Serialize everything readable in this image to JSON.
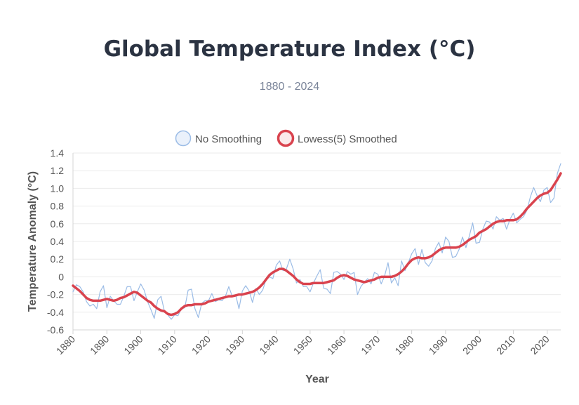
{
  "title": "Global Temperature Index (°C)",
  "subtitle": "1880 - 2024",
  "colors": {
    "raw": "#9bbce6",
    "smooth": "#d9434e",
    "grid": "#ebebeb",
    "text": "#555555"
  },
  "chart_data": {
    "type": "line",
    "xlabel": "Year",
    "ylabel": "Temperature Anomaly (°C)",
    "xlim": [
      1880,
      2024
    ],
    "ylim": [
      -0.6,
      1.4
    ],
    "x_ticks": [
      1880,
      1890,
      1900,
      1910,
      1920,
      1930,
      1940,
      1950,
      1960,
      1970,
      1980,
      1990,
      2000,
      2010,
      2020
    ],
    "y_ticks": [
      1.4,
      1.2,
      1.0,
      0.8,
      0.6,
      0.4,
      0.2,
      0,
      -0.2,
      -0.4,
      -0.6
    ],
    "y_tick_labels": [
      "1.4",
      "1.2",
      "1.0",
      "0.8",
      "0.6",
      "0.4",
      "0.2",
      "0",
      "-0.2",
      "-0.4",
      "-0.6"
    ],
    "grid": true,
    "legend": "top-center",
    "series": [
      {
        "name": "No Smoothing",
        "color": "#9bbce6",
        "x": [
          1880,
          1881,
          1882,
          1883,
          1884,
          1885,
          1886,
          1887,
          1888,
          1889,
          1890,
          1891,
          1892,
          1893,
          1894,
          1895,
          1896,
          1897,
          1898,
          1899,
          1900,
          1901,
          1902,
          1903,
          1904,
          1905,
          1906,
          1907,
          1908,
          1909,
          1910,
          1911,
          1912,
          1913,
          1914,
          1915,
          1916,
          1917,
          1918,
          1919,
          1920,
          1921,
          1922,
          1923,
          1924,
          1925,
          1926,
          1927,
          1928,
          1929,
          1930,
          1931,
          1932,
          1933,
          1934,
          1935,
          1936,
          1937,
          1938,
          1939,
          1940,
          1941,
          1942,
          1943,
          1944,
          1945,
          1946,
          1947,
          1948,
          1949,
          1950,
          1951,
          1952,
          1953,
          1954,
          1955,
          1956,
          1957,
          1958,
          1959,
          1960,
          1961,
          1962,
          1963,
          1964,
          1965,
          1966,
          1967,
          1968,
          1969,
          1970,
          1971,
          1972,
          1973,
          1974,
          1975,
          1976,
          1977,
          1978,
          1979,
          1980,
          1981,
          1982,
          1983,
          1984,
          1985,
          1986,
          1987,
          1988,
          1989,
          1990,
          1991,
          1992,
          1993,
          1994,
          1995,
          1996,
          1997,
          1998,
          1999,
          2000,
          2001,
          2002,
          2003,
          2004,
          2005,
          2006,
          2007,
          2008,
          2009,
          2010,
          2011,
          2012,
          2013,
          2014,
          2015,
          2016,
          2017,
          2018,
          2019,
          2020,
          2021,
          2022,
          2023,
          2024
        ],
        "values": [
          -0.17,
          -0.09,
          -0.11,
          -0.17,
          -0.28,
          -0.33,
          -0.31,
          -0.36,
          -0.17,
          -0.1,
          -0.35,
          -0.22,
          -0.27,
          -0.31,
          -0.31,
          -0.22,
          -0.11,
          -0.11,
          -0.27,
          -0.17,
          -0.08,
          -0.15,
          -0.28,
          -0.37,
          -0.47,
          -0.26,
          -0.22,
          -0.39,
          -0.43,
          -0.48,
          -0.43,
          -0.44,
          -0.36,
          -0.35,
          -0.15,
          -0.14,
          -0.36,
          -0.46,
          -0.3,
          -0.27,
          -0.27,
          -0.19,
          -0.28,
          -0.26,
          -0.27,
          -0.22,
          -0.11,
          -0.22,
          -0.2,
          -0.36,
          -0.16,
          -0.1,
          -0.16,
          -0.29,
          -0.13,
          -0.2,
          -0.15,
          -0.03,
          0,
          -0.02,
          0.13,
          0.18,
          0.07,
          0.09,
          0.2,
          0.09,
          -0.07,
          -0.03,
          -0.11,
          -0.11,
          -0.17,
          -0.07,
          0.01,
          0.08,
          -0.13,
          -0.14,
          -0.19,
          0.05,
          0.06,
          0.03,
          -0.03,
          0.06,
          0.03,
          0.05,
          -0.2,
          -0.11,
          -0.06,
          -0.02,
          -0.08,
          0.05,
          0.03,
          -0.08,
          0.01,
          0.16,
          -0.07,
          -0.01,
          -0.1,
          0.18,
          0.07,
          0.16,
          0.26,
          0.32,
          0.14,
          0.31,
          0.16,
          0.12,
          0.18,
          0.32,
          0.39,
          0.27,
          0.45,
          0.4,
          0.22,
          0.23,
          0.31,
          0.45,
          0.33,
          0.46,
          0.61,
          0.38,
          0.39,
          0.54,
          0.63,
          0.62,
          0.54,
          0.68,
          0.64,
          0.66,
          0.54,
          0.65,
          0.72,
          0.61,
          0.65,
          0.68,
          0.75,
          0.9,
          1.01,
          0.92,
          0.85,
          0.98,
          1.01,
          0.84,
          0.89,
          1.17,
          1.28
        ]
      },
      {
        "name": "Lowess(5) Smoothed",
        "color": "#d9434e",
        "x": [
          1880,
          1881,
          1882,
          1883,
          1884,
          1885,
          1886,
          1887,
          1888,
          1889,
          1890,
          1891,
          1892,
          1893,
          1894,
          1895,
          1896,
          1897,
          1898,
          1899,
          1900,
          1901,
          1902,
          1903,
          1904,
          1905,
          1906,
          1907,
          1908,
          1909,
          1910,
          1911,
          1912,
          1913,
          1914,
          1915,
          1916,
          1917,
          1918,
          1919,
          1920,
          1921,
          1922,
          1923,
          1924,
          1925,
          1926,
          1927,
          1928,
          1929,
          1930,
          1931,
          1932,
          1933,
          1934,
          1935,
          1936,
          1937,
          1938,
          1939,
          1940,
          1941,
          1942,
          1943,
          1944,
          1945,
          1946,
          1947,
          1948,
          1949,
          1950,
          1951,
          1952,
          1953,
          1954,
          1955,
          1956,
          1957,
          1958,
          1959,
          1960,
          1961,
          1962,
          1963,
          1964,
          1965,
          1966,
          1967,
          1968,
          1969,
          1970,
          1971,
          1972,
          1973,
          1974,
          1975,
          1976,
          1977,
          1978,
          1979,
          1980,
          1981,
          1982,
          1983,
          1984,
          1985,
          1986,
          1987,
          1988,
          1989,
          1990,
          1991,
          1992,
          1993,
          1994,
          1995,
          1996,
          1997,
          1998,
          1999,
          2000,
          2001,
          2002,
          2003,
          2004,
          2005,
          2006,
          2007,
          2008,
          2009,
          2010,
          2011,
          2012,
          2013,
          2014,
          2015,
          2016,
          2017,
          2018,
          2019,
          2020,
          2021,
          2022,
          2023,
          2024
        ],
        "values": [
          -0.1,
          -0.13,
          -0.16,
          -0.2,
          -0.24,
          -0.26,
          -0.27,
          -0.27,
          -0.27,
          -0.26,
          -0.25,
          -0.26,
          -0.27,
          -0.26,
          -0.24,
          -0.23,
          -0.21,
          -0.19,
          -0.17,
          -0.18,
          -0.21,
          -0.24,
          -0.27,
          -0.29,
          -0.33,
          -0.36,
          -0.38,
          -0.39,
          -0.42,
          -0.43,
          -0.42,
          -0.4,
          -0.36,
          -0.33,
          -0.32,
          -0.32,
          -0.31,
          -0.31,
          -0.31,
          -0.3,
          -0.28,
          -0.27,
          -0.26,
          -0.25,
          -0.24,
          -0.23,
          -0.22,
          -0.22,
          -0.21,
          -0.2,
          -0.2,
          -0.19,
          -0.18,
          -0.17,
          -0.15,
          -0.12,
          -0.08,
          -0.03,
          0.02,
          0.05,
          0.07,
          0.09,
          0.09,
          0.07,
          0.04,
          0.01,
          -0.03,
          -0.06,
          -0.08,
          -0.08,
          -0.08,
          -0.07,
          -0.07,
          -0.07,
          -0.07,
          -0.06,
          -0.05,
          -0.04,
          -0.01,
          0.01,
          0.02,
          0.01,
          -0.01,
          -0.03,
          -0.04,
          -0.05,
          -0.06,
          -0.05,
          -0.04,
          -0.03,
          -0.01,
          0,
          0,
          0,
          0,
          0.01,
          0.03,
          0.06,
          0.1,
          0.15,
          0.19,
          0.21,
          0.22,
          0.21,
          0.21,
          0.22,
          0.24,
          0.27,
          0.3,
          0.32,
          0.33,
          0.33,
          0.33,
          0.33,
          0.34,
          0.36,
          0.39,
          0.42,
          0.44,
          0.46,
          0.5,
          0.52,
          0.54,
          0.57,
          0.6,
          0.62,
          0.63,
          0.63,
          0.64,
          0.64,
          0.64,
          0.65,
          0.68,
          0.72,
          0.77,
          0.81,
          0.85,
          0.89,
          0.92,
          0.94,
          0.95,
          0.98,
          1.04,
          1.1,
          1.17
        ]
      }
    ]
  }
}
